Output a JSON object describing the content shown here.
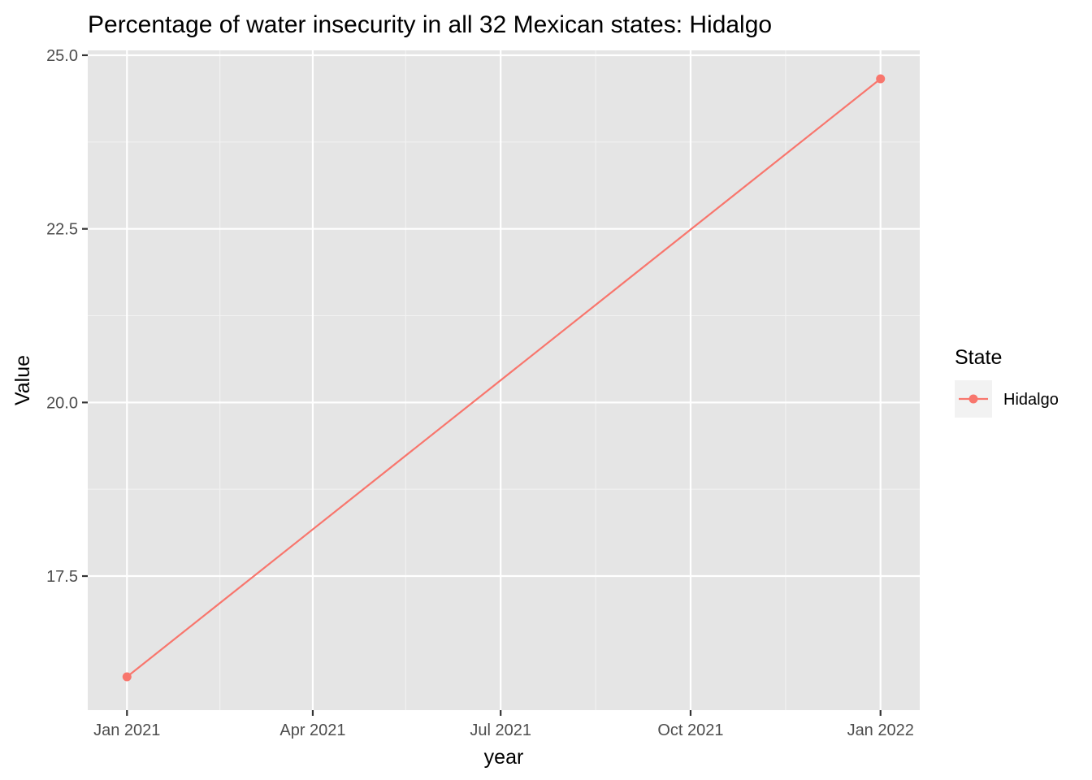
{
  "chart_data": {
    "type": "line",
    "title": "Percentage of water insecurity in all 32 Mexican states: Hidalgo",
    "xlabel": "year",
    "ylabel": "Value",
    "x_tick_labels": [
      "Jan 2021",
      "Apr 2021",
      "Jul 2021",
      "Oct 2021",
      "Jan 2022"
    ],
    "x_ticks": [
      "2021-01-01",
      "2021-04-01",
      "2021-07-01",
      "2021-10-01",
      "2022-01-01"
    ],
    "x_minor_ticks": [
      "2021-02-15",
      "2021-05-16",
      "2021-08-16",
      "2021-11-16"
    ],
    "y_ticks": [
      17.5,
      20.0,
      22.5,
      25.0
    ],
    "y_tick_labels": [
      "17.5",
      "20.0",
      "22.5",
      "25.0"
    ],
    "y_minor_ticks": [
      18.75,
      21.25,
      23.75
    ],
    "xlim": [
      "2020-12-13",
      "2022-01-20"
    ],
    "ylim": [
      15.57,
      25.07
    ],
    "grid": true,
    "legend_title": "State",
    "legend_position": "right",
    "series": [
      {
        "name": "Hidalgo",
        "color": "#F8766D",
        "x": [
          "2021-01-01",
          "2022-01-01"
        ],
        "y": [
          16.05,
          24.66
        ]
      }
    ]
  }
}
